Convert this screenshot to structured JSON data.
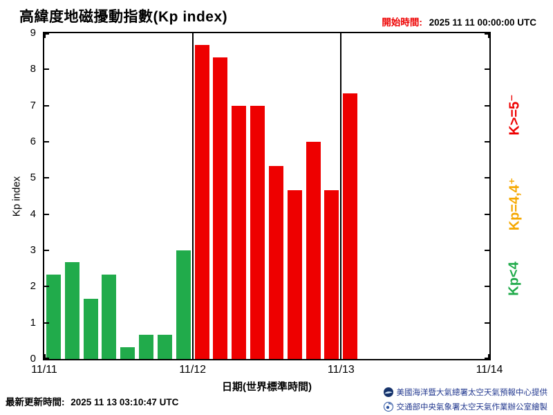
{
  "header": {
    "title": "高緯度地磁擾動指數(Kp index)",
    "start_time_label": "開始時間:",
    "start_time_value": "2025 11 11 00:00:00 UTC"
  },
  "chart_data": {
    "type": "bar",
    "title": "高緯度地磁擾動指數(Kp index)",
    "ylabel": "Kp index",
    "xlabel": "日期(世界標準時間)",
    "ylim": [
      0,
      9
    ],
    "yticks": [
      0,
      1,
      2,
      3,
      4,
      5,
      6,
      7,
      8,
      9
    ],
    "xticks": [
      "11/11",
      "11/12",
      "11/13",
      "11/14"
    ],
    "days": 3,
    "slots_per_day": 8,
    "grid": "vertical-day-boundaries",
    "bars": [
      {
        "slot": 0,
        "value": 2.33
      },
      {
        "slot": 1,
        "value": 2.67
      },
      {
        "slot": 2,
        "value": 1.67
      },
      {
        "slot": 3,
        "value": 2.33
      },
      {
        "slot": 4,
        "value": 0.33
      },
      {
        "slot": 5,
        "value": 0.67
      },
      {
        "slot": 6,
        "value": 0.67
      },
      {
        "slot": 7,
        "value": 3.0
      },
      {
        "slot": 8,
        "value": 8.67
      },
      {
        "slot": 9,
        "value": 8.33
      },
      {
        "slot": 10,
        "value": 7.0
      },
      {
        "slot": 11,
        "value": 7.0
      },
      {
        "slot": 12,
        "value": 5.33
      },
      {
        "slot": 13,
        "value": 4.67
      },
      {
        "slot": 14,
        "value": 6.0
      },
      {
        "slot": 15,
        "value": 4.67
      },
      {
        "slot": 16,
        "value": 7.33
      }
    ],
    "thresholds": {
      "red_min": 4.67,
      "yellow_min": 4.0
    },
    "colors": {
      "green": "#21ab4b",
      "yellow": "#f5a800",
      "red": "#ee0000"
    },
    "legend": [
      {
        "label": "K>=5⁻",
        "color": "red"
      },
      {
        "label": "Kp=4,4⁺",
        "color": "yellow"
      },
      {
        "label": "Kp<4",
        "color": "green"
      }
    ],
    "legend_position": "right-rotated"
  },
  "footer": {
    "updated_label": "最新更新時間:",
    "updated_value": "2025 11 13 03:10:47 UTC",
    "credit_noaa": "美國海洋暨大氣總署太空天氣預報中心提供",
    "credit_cwb": "交通部中央氣象署太空天氣作業辦公室繪製",
    "credit_color": "#22388f"
  }
}
